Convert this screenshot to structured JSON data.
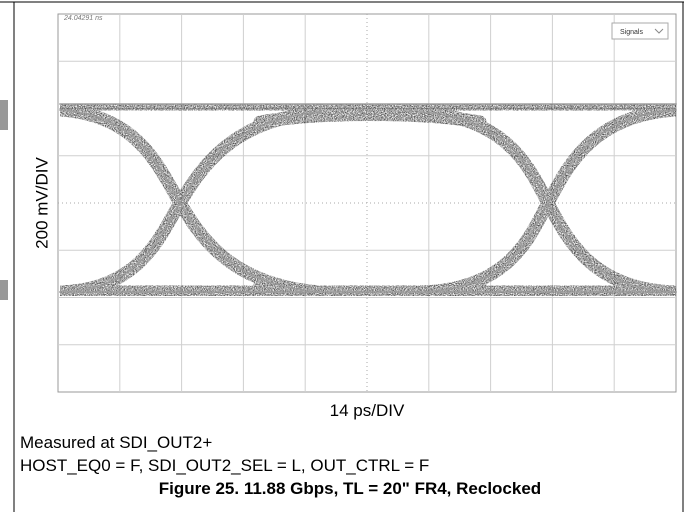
{
  "scope": {
    "timestamp": "24.04291 ns",
    "signals_button": "Signals",
    "y_label": "200 mV/DIV",
    "x_label": "14 ps/DIV"
  },
  "caption": {
    "line1": "Measured at SDI_OUT2+",
    "line2": "HOST_EQ0 = F, SDI_OUT2_SEL = L, OUT_CTRL = F",
    "figure": "Figure 25. 11.88 Gbps, TL = 20\" FR4, Reclocked"
  }
}
